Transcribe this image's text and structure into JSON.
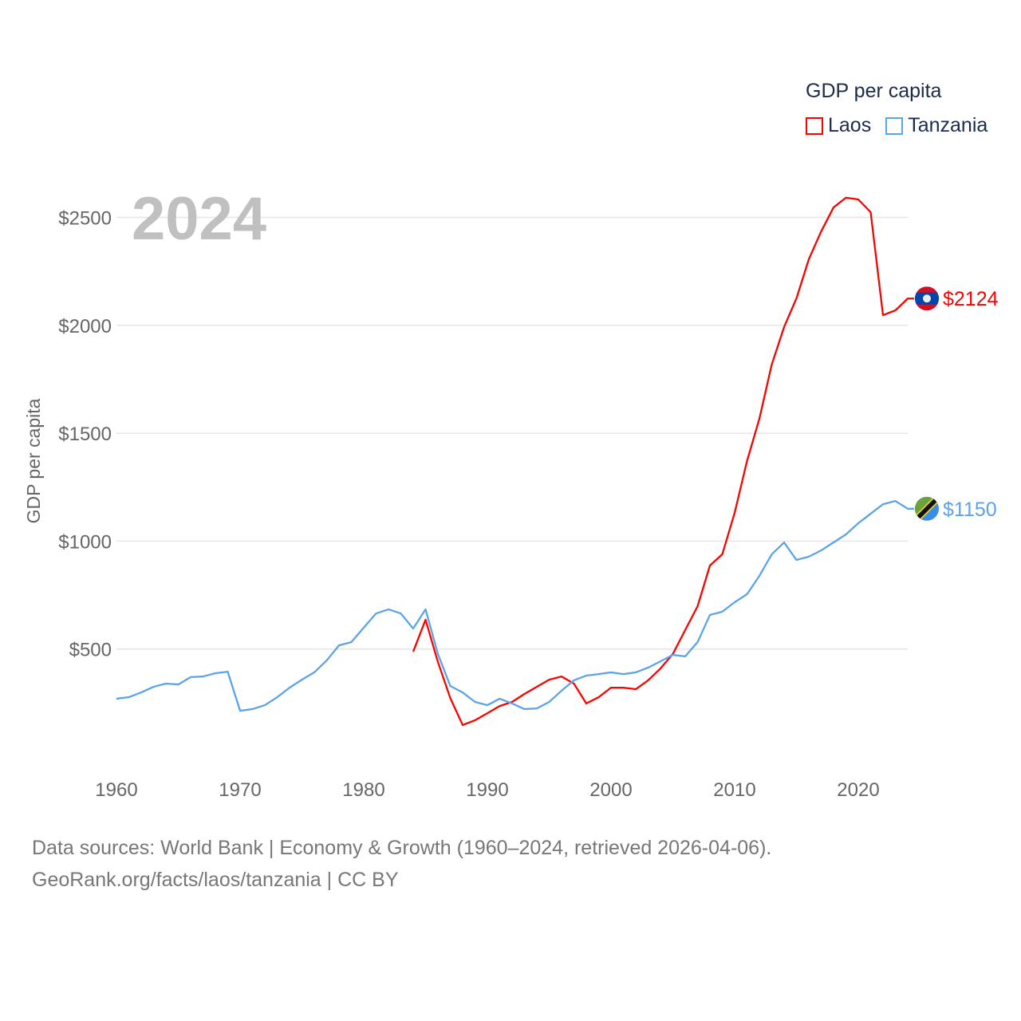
{
  "chart_data": {
    "type": "line",
    "title": "2024",
    "ylabel": "GDP per capita",
    "xlabel": "",
    "legend_title": "GDP per capita",
    "legend_placement": "top-right",
    "ylim": [
      0,
      2700
    ],
    "xlim": [
      1960,
      2024
    ],
    "grid": true,
    "y_ticks": [
      500,
      1000,
      1500,
      2000,
      2500
    ],
    "y_tick_labels": [
      "$500",
      "$1000",
      "$1500",
      "$2000",
      "$2500"
    ],
    "x_ticks": [
      1960,
      1970,
      1980,
      1990,
      2000,
      2010,
      2020
    ],
    "x_tick_labels": [
      "1960",
      "1970",
      "1980",
      "1990",
      "2000",
      "2010",
      "2020"
    ],
    "series": [
      {
        "name": "Laos",
        "color": "#ff0000",
        "end_label": "$2124",
        "start_year": 1984,
        "values": [
          488,
          636,
          440,
          273,
          148,
          170,
          203,
          236,
          255,
          292,
          325,
          358,
          373,
          340,
          248,
          277,
          321,
          321,
          314,
          355,
          410,
          477,
          588,
          698,
          887,
          939,
          1131,
          1371,
          1567,
          1818,
          1992,
          2125,
          2306,
          2435,
          2546,
          2591,
          2583,
          2524,
          2047,
          2069,
          2124
        ]
      },
      {
        "name": "Tanzania",
        "color": "#5ca3ea",
        "end_label": "$1150",
        "start_year": 1960,
        "values": [
          270,
          277,
          299,
          325,
          340,
          336,
          370,
          373,
          388,
          395,
          214,
          222,
          240,
          277,
          321,
          358,
          392,
          447,
          517,
          532,
          599,
          665,
          684,
          665,
          595,
          684,
          477,
          329,
          299,
          255,
          240,
          270,
          248,
          222,
          225,
          255,
          307,
          355,
          377,
          384,
          392,
          384,
          392,
          414,
          443,
          473,
          466,
          532,
          658,
          673,
          717,
          754,
          839,
          939,
          994,
          913,
          928,
          957,
          994,
          1031,
          1083,
          1127,
          1171,
          1186,
          1150
        ]
      }
    ]
  },
  "footer": {
    "line1": "Data sources: World Bank | Economy & Growth (1960–2024, retrieved 2026-04-06).",
    "line2": "GeoRank.org/facts/laos/tanzania | CC BY"
  }
}
